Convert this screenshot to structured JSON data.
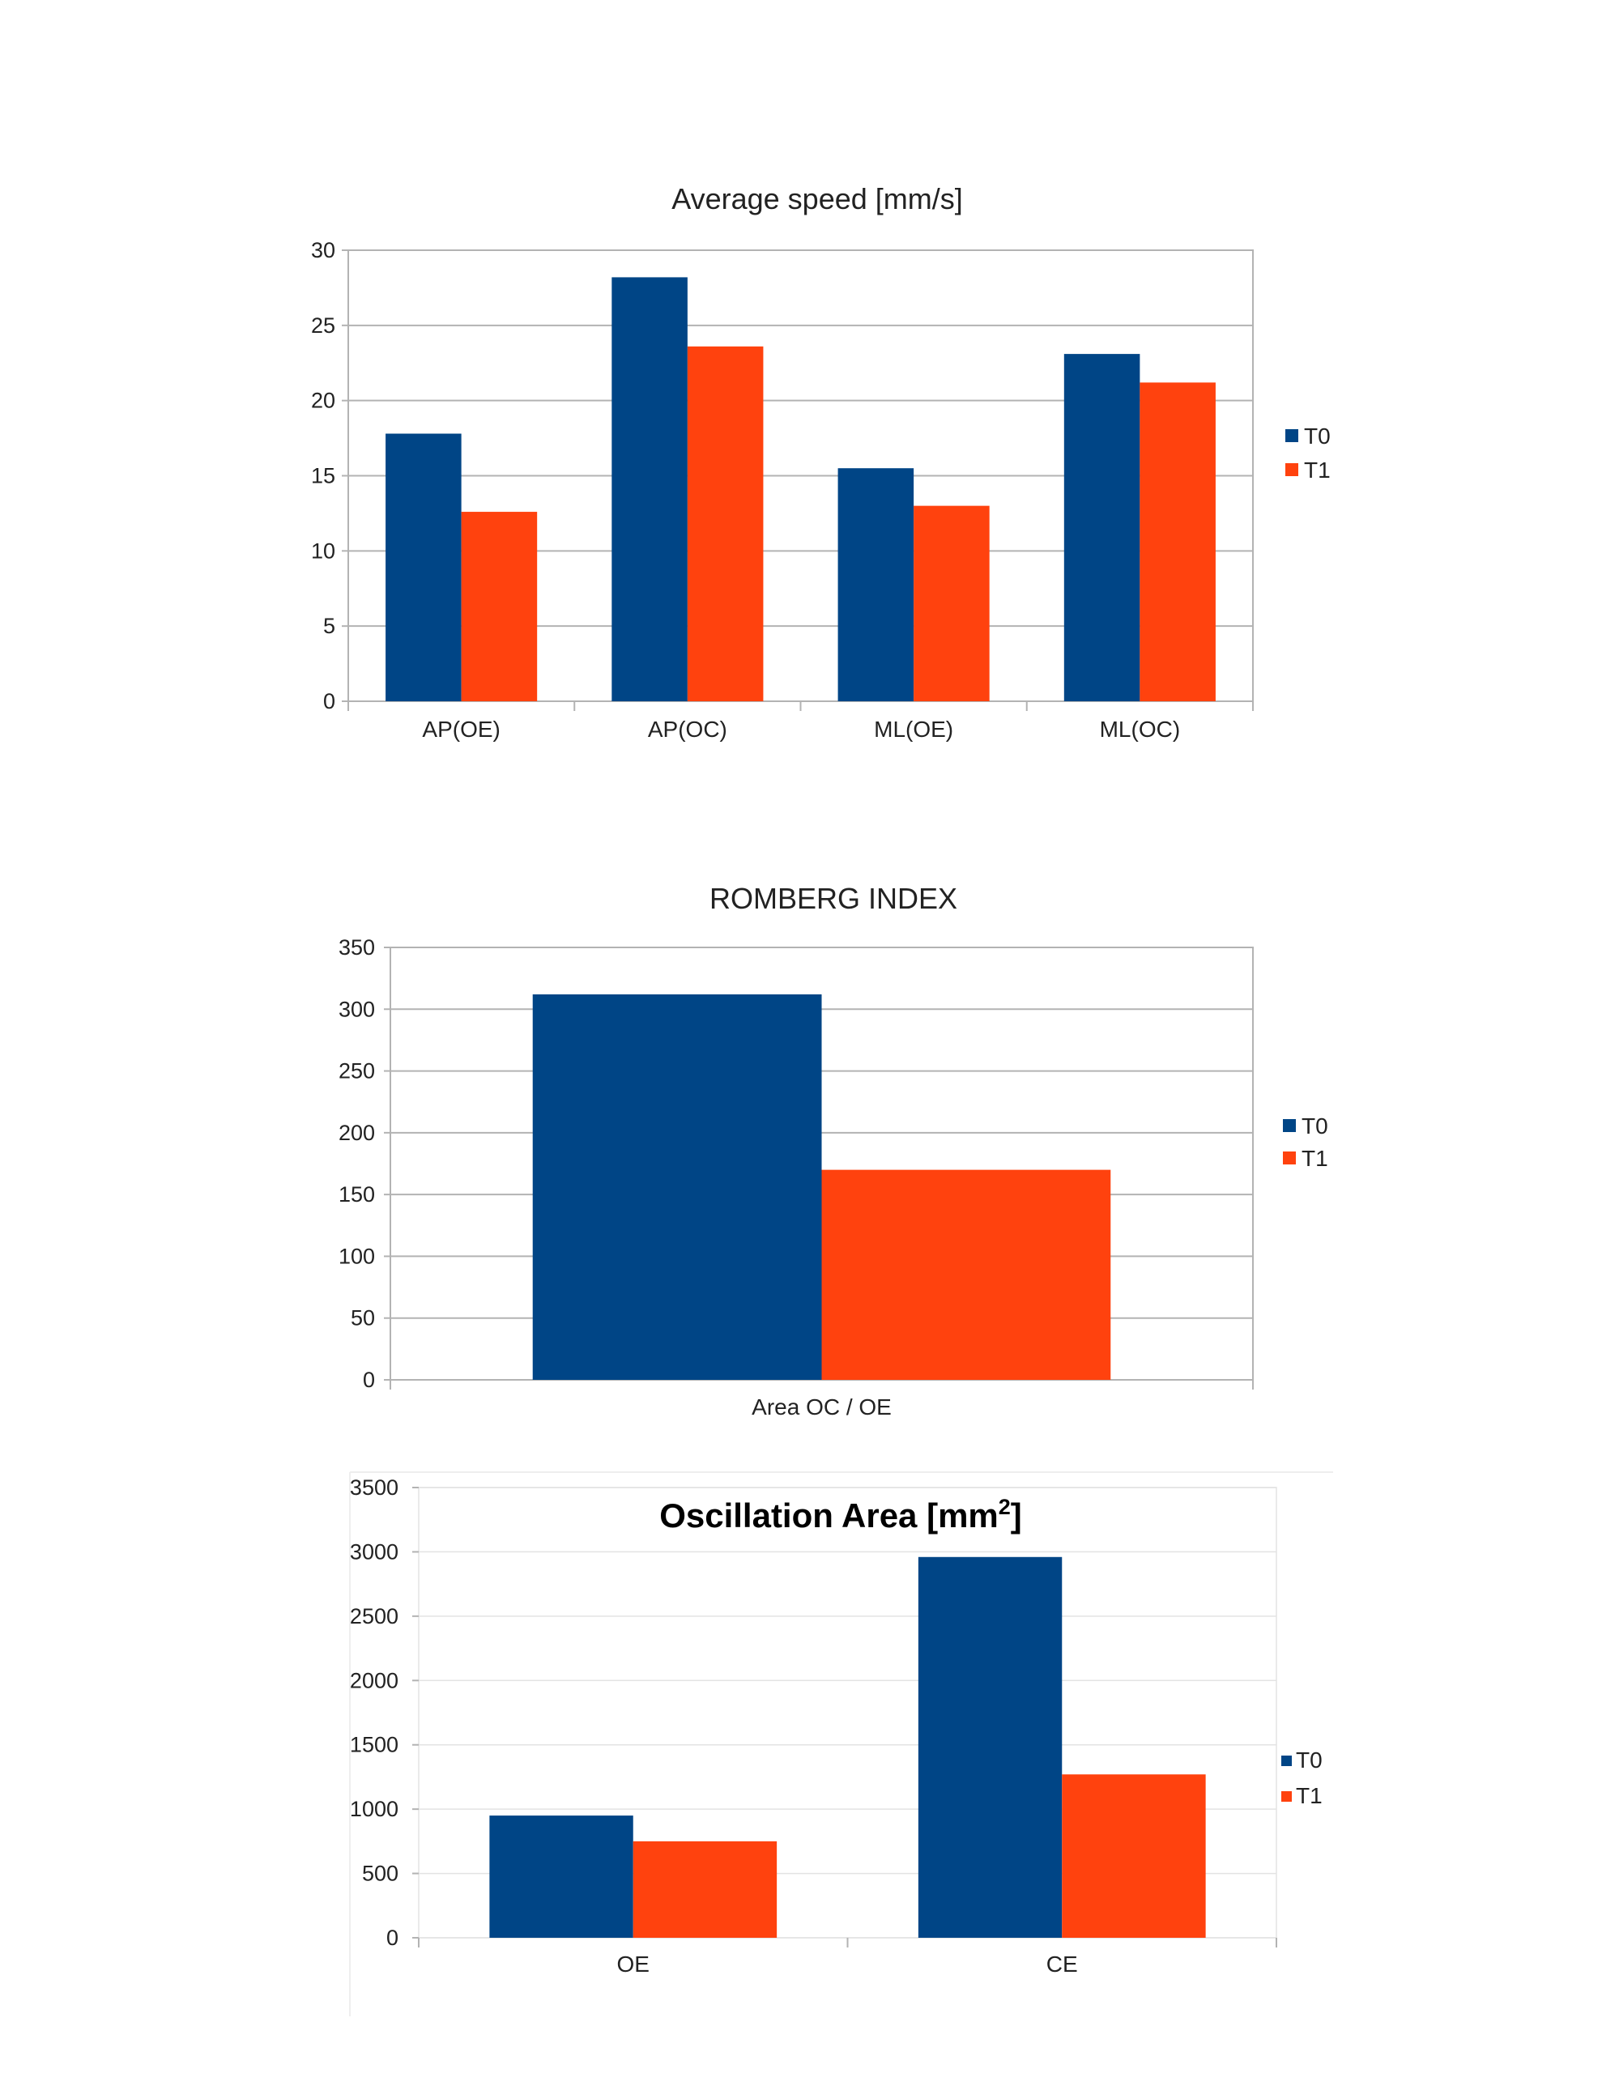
{
  "colors": {
    "T0": "#004586",
    "T1": "#ff420e",
    "grid": "#b3b3b3",
    "frame": "#b3b3b3"
  },
  "chart_data": [
    {
      "type": "bar",
      "title": "Average speed [mm/s]",
      "categories": [
        "AP(OE)",
        "AP(OC)",
        "ML(OE)",
        "ML(OC)"
      ],
      "series": [
        {
          "name": "T0",
          "values": [
            17.8,
            28.2,
            15.5,
            23.1
          ]
        },
        {
          "name": "T1",
          "values": [
            12.6,
            23.6,
            13.0,
            21.2
          ]
        }
      ],
      "ylim": [
        0,
        30
      ],
      "yticks": [
        "0",
        "5",
        "10",
        "15",
        "20",
        "25",
        "30"
      ],
      "grid": true,
      "legend": "right"
    },
    {
      "type": "bar",
      "title": "ROMBERG INDEX",
      "categories": [
        "Area OC / OE"
      ],
      "series": [
        {
          "name": "T0",
          "values": [
            312
          ]
        },
        {
          "name": "T1",
          "values": [
            170
          ]
        }
      ],
      "ylim": [
        0,
        350
      ],
      "yticks": [
        "0",
        "50",
        "100",
        "150",
        "200",
        "250",
        "300",
        "350"
      ],
      "grid": true,
      "legend": "right"
    },
    {
      "type": "bar",
      "title": "Oscillation Area [mm",
      "title_sup": "2",
      "title_end": "]",
      "categories": [
        "OE",
        "CE"
      ],
      "series": [
        {
          "name": "T0",
          "values": [
            950,
            2960
          ]
        },
        {
          "name": "T1",
          "values": [
            750,
            1270
          ]
        }
      ],
      "ylim": [
        0,
        3500
      ],
      "yticks": [
        "0",
        "500",
        "1000",
        "1500",
        "2000",
        "2500",
        "3000",
        "3500"
      ],
      "grid": true,
      "legend": "right"
    }
  ]
}
